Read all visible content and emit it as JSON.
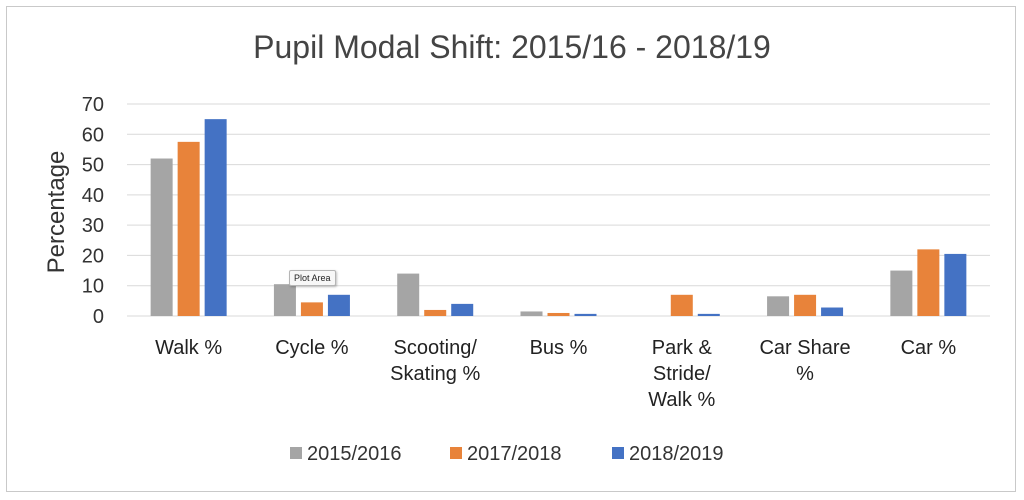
{
  "chart_data": {
    "type": "bar",
    "title": "Pupil Modal Shift: 2015/16 - 2018/19",
    "xlabel": "",
    "ylabel": "Percentage",
    "ylim": [
      0,
      70
    ],
    "yticks": [
      0,
      10,
      20,
      30,
      40,
      50,
      60,
      70
    ],
    "grid": true,
    "legend_position": "bottom",
    "categories": [
      [
        "Walk %"
      ],
      [
        "Cycle %"
      ],
      [
        "Scooting/",
        "Skating %"
      ],
      [
        "Bus %"
      ],
      [
        "Park &",
        "Stride/",
        "Walk %"
      ],
      [
        "Car Share",
        "%"
      ],
      [
        "Car %"
      ]
    ],
    "series": [
      {
        "name": "2015/2016",
        "color": "#a5a5a5",
        "values": [
          52,
          10.5,
          14,
          1.5,
          0,
          6.5,
          15
        ]
      },
      {
        "name": "2017/2018",
        "color": "#e8833a",
        "values": [
          57.5,
          4.5,
          2,
          1,
          7,
          7,
          22
        ]
      },
      {
        "name": "2018/2019",
        "color": "#4472c4",
        "values": [
          65,
          7,
          4,
          0.7,
          0.7,
          2.8,
          20.5
        ]
      }
    ]
  },
  "tooltip": {
    "text": "Plot Area"
  }
}
